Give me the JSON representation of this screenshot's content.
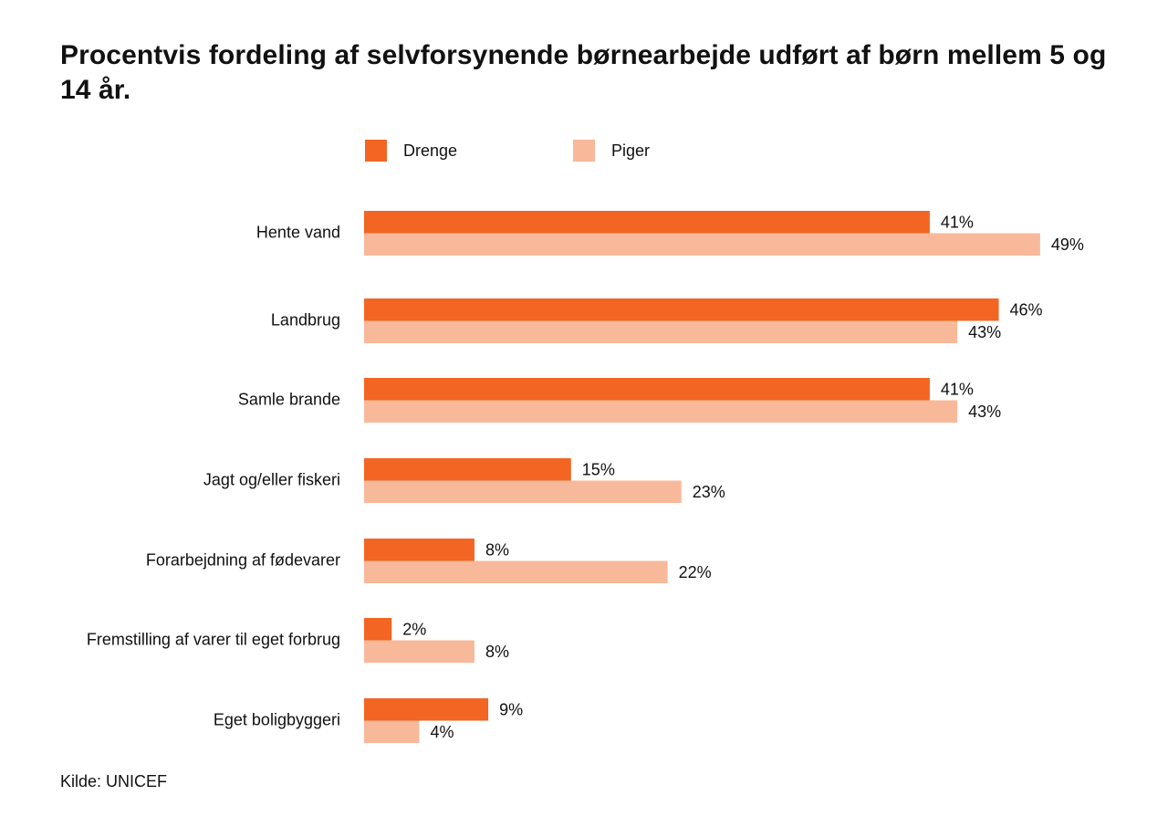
{
  "title": "Procentvis fordeling af selvforsynende børnearbejde udført af børn mellem 5 og 14 år.",
  "source": "Kilde: UNICEF",
  "colors": {
    "drenge": "#F26522",
    "piger": "#F8B99B",
    "text": "#111111"
  },
  "chart_data": {
    "type": "bar",
    "orientation": "horizontal",
    "title": "Procentvis fordeling af selvforsynende børnearbejde udført af børn mellem 5 og 14 år.",
    "categories": [
      "Hente vand",
      "Landbrug",
      "Samle brande",
      "Jagt og/eller fiskeri",
      "Forarbejdning af fødevarer",
      "Fremstilling af varer til eget forbrug",
      "Eget boligbyggeri"
    ],
    "series": [
      {
        "name": "Drenge",
        "values": [
          41,
          46,
          41,
          15,
          8,
          2,
          9
        ],
        "labels": [
          "41%",
          "46%",
          "41%",
          "15%",
          "8%",
          "2%",
          "9%"
        ]
      },
      {
        "name": "Piger",
        "values": [
          49,
          43,
          43,
          23,
          22,
          8,
          4
        ],
        "labels": [
          "49%",
          "43%",
          "43%",
          "23%",
          "22%",
          "8%",
          "4%"
        ]
      }
    ],
    "legend_position": "top",
    "xlabel": "",
    "ylabel": "",
    "grid": false,
    "axis_visible": false
  }
}
